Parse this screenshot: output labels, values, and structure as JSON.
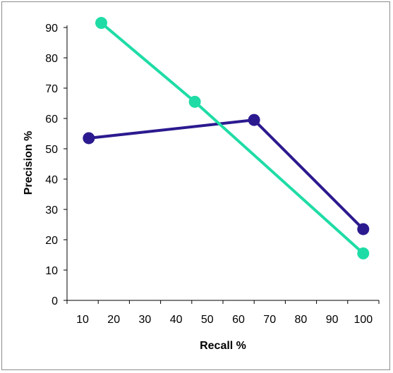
{
  "chart_data": {
    "type": "line",
    "xlabel": "Recall %",
    "ylabel": "Precision %",
    "xlim": [
      10,
      100
    ],
    "ylim": [
      0,
      90
    ],
    "xticks": [
      10,
      20,
      30,
      40,
      50,
      60,
      70,
      80,
      90,
      100
    ],
    "yticks": [
      0,
      10,
      20,
      30,
      40,
      50,
      60,
      70,
      80,
      90
    ],
    "grid": false,
    "legend": "none",
    "series": [
      {
        "color": "#2b1a8f",
        "marker": "circle",
        "points": [
          {
            "x": 12,
            "y": 53.5
          },
          {
            "x": 65,
            "y": 59.5
          },
          {
            "x": 100,
            "y": 23.5
          }
        ]
      },
      {
        "color": "#1fdca6",
        "marker": "circle",
        "points": [
          {
            "x": 16,
            "y": 91.5
          },
          {
            "x": 46,
            "y": 65.5
          },
          {
            "x": 100,
            "y": 15.5
          }
        ]
      }
    ]
  }
}
